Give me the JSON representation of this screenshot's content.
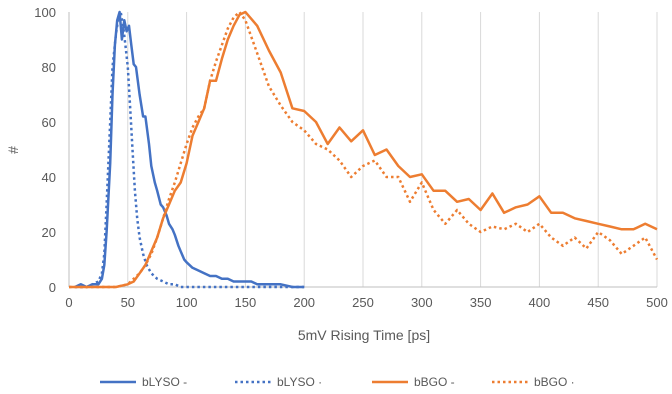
{
  "chart_data": {
    "type": "line",
    "title": "",
    "xlabel": "5mV Rising Time [ps]",
    "ylabel": "#",
    "xlim": [
      0,
      500
    ],
    "ylim": [
      0,
      100
    ],
    "xticks": [
      "0",
      "50",
      "100",
      "150",
      "200",
      "250",
      "300",
      "350",
      "400",
      "450",
      "500"
    ],
    "yticks": [
      "0",
      "20",
      "40",
      "60",
      "80",
      "100"
    ],
    "grid": "vertical",
    "legend_position": "bottom",
    "series": [
      {
        "name": "bLYSO -",
        "color": "#4472C4",
        "style": "solid",
        "x": [
          5,
          10,
          15,
          20,
          25,
          28,
          30,
          32,
          35,
          37,
          39,
          41,
          43,
          45,
          47,
          49,
          51,
          53,
          55,
          57,
          60,
          63,
          65,
          68,
          70,
          73,
          75,
          78,
          80,
          83,
          85,
          88,
          90,
          93,
          95,
          98,
          100,
          105,
          110,
          115,
          120,
          125,
          130,
          135,
          140,
          145,
          150,
          155,
          160,
          165,
          170,
          180,
          190,
          200
        ],
        "y": [
          0,
          1,
          0,
          1,
          1,
          3,
          8,
          20,
          45,
          70,
          88,
          97,
          100,
          90,
          97,
          93,
          95,
          88,
          81,
          80,
          70,
          62,
          62,
          52,
          44,
          38,
          35,
          30,
          29,
          26,
          23,
          21,
          19,
          15,
          13,
          10,
          9,
          7,
          6,
          5,
          4,
          4,
          3,
          3,
          2,
          2,
          2,
          2,
          1,
          1,
          1,
          1,
          0,
          0
        ]
      },
      {
        "name": "bLYSO ·",
        "color": "#4472C4",
        "style": "dotted",
        "x": [
          5,
          10,
          15,
          20,
          25,
          28,
          30,
          32,
          35,
          37,
          40,
          42,
          44,
          46,
          48,
          50,
          52,
          54,
          56,
          58,
          60,
          63,
          66,
          70,
          75,
          80,
          85,
          90,
          95,
          100,
          110,
          120,
          200
        ],
        "y": [
          0,
          0,
          0,
          1,
          2,
          5,
          12,
          30,
          60,
          80,
          92,
          98,
          100,
          95,
          88,
          80,
          65,
          50,
          35,
          25,
          18,
          12,
          8,
          5,
          3,
          2,
          1,
          1,
          0,
          0,
          0,
          0,
          0
        ]
      },
      {
        "name": "bBGO -",
        "color": "#ED7D31",
        "style": "solid",
        "x": [
          0,
          20,
          40,
          50,
          55,
          60,
          65,
          70,
          75,
          80,
          85,
          90,
          95,
          100,
          105,
          110,
          115,
          120,
          125,
          130,
          135,
          140,
          145,
          150,
          160,
          170,
          180,
          190,
          200,
          210,
          220,
          230,
          240,
          250,
          260,
          270,
          280,
          290,
          300,
          310,
          320,
          330,
          340,
          350,
          360,
          370,
          380,
          390,
          400,
          410,
          420,
          430,
          440,
          450,
          460,
          470,
          480,
          490,
          500
        ],
        "y": [
          0,
          0,
          0,
          1,
          2,
          5,
          8,
          13,
          18,
          25,
          30,
          35,
          38,
          45,
          55,
          60,
          65,
          75,
          75,
          83,
          90,
          95,
          99,
          100,
          95,
          86,
          78,
          65,
          64,
          60,
          52,
          58,
          53,
          57,
          48,
          50,
          44,
          40,
          41,
          35,
          35,
          31,
          32,
          28,
          34,
          27,
          29,
          30,
          33,
          27,
          27,
          25,
          24,
          23,
          22,
          21,
          21,
          23,
          21
        ]
      },
      {
        "name": "bBGO ·",
        "color": "#ED7D31",
        "style": "dotted",
        "x": [
          0,
          20,
          40,
          50,
          55,
          60,
          65,
          70,
          75,
          80,
          85,
          90,
          95,
          100,
          105,
          110,
          115,
          120,
          125,
          130,
          135,
          140,
          145,
          150,
          160,
          170,
          180,
          190,
          200,
          210,
          220,
          230,
          240,
          250,
          260,
          270,
          280,
          290,
          300,
          310,
          320,
          330,
          340,
          350,
          360,
          370,
          380,
          390,
          400,
          410,
          420,
          430,
          440,
          450,
          460,
          470,
          480,
          490,
          500
        ],
        "y": [
          0,
          0,
          0,
          1,
          3,
          5,
          8,
          12,
          18,
          25,
          32,
          38,
          45,
          52,
          58,
          62,
          65,
          75,
          82,
          88,
          94,
          98,
          100,
          97,
          85,
          73,
          66,
          60,
          57,
          52,
          50,
          46,
          40,
          44,
          46,
          40,
          40,
          31,
          38,
          28,
          23,
          28,
          23,
          20,
          22,
          21,
          23,
          20,
          23,
          18,
          15,
          18,
          14,
          20,
          17,
          12,
          15,
          18,
          10
        ]
      }
    ]
  }
}
